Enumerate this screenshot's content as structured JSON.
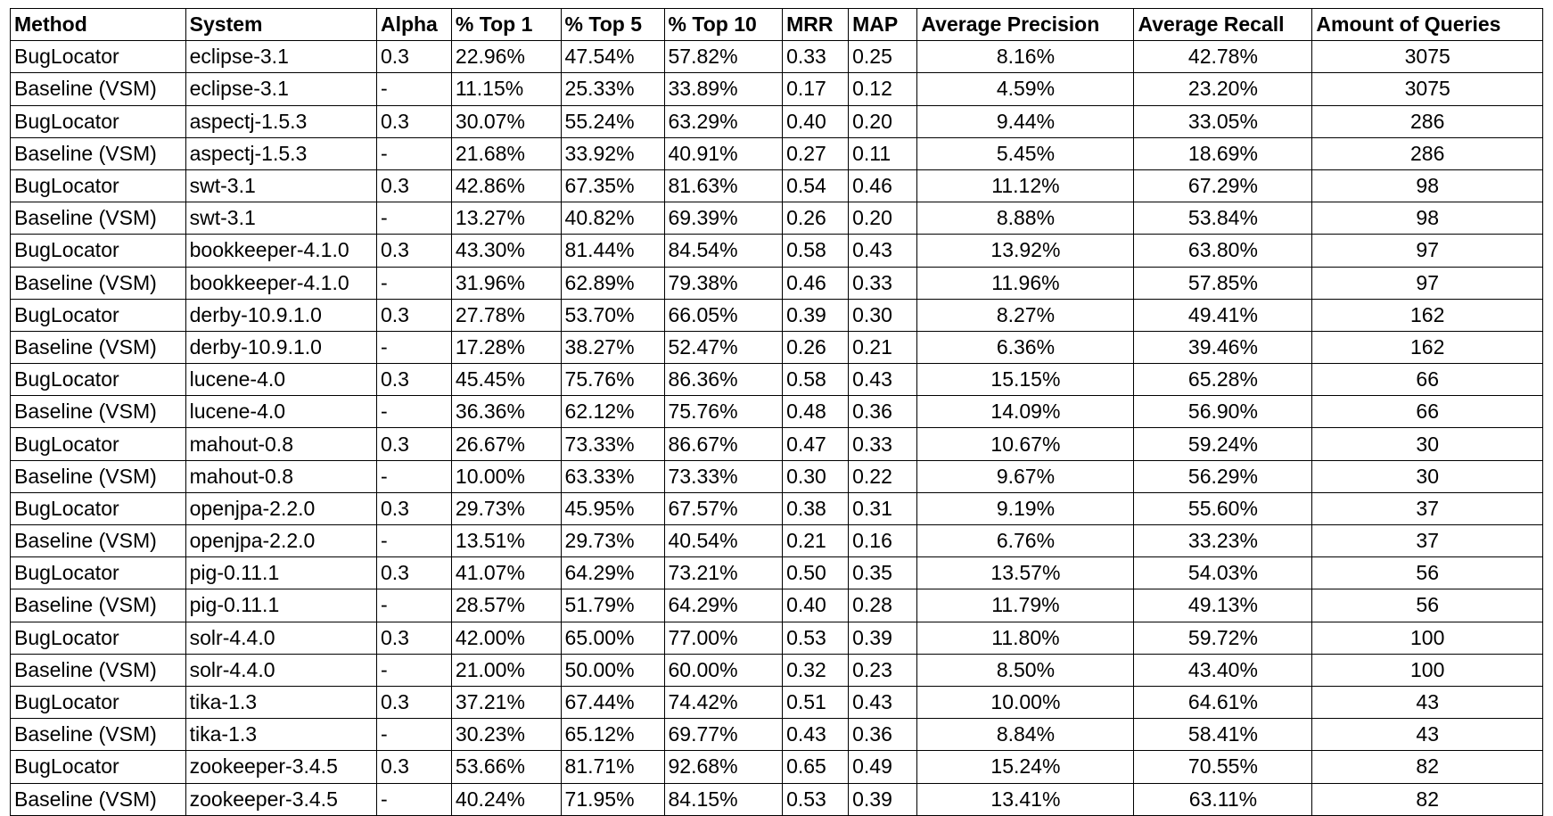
{
  "table": {
    "columns": [
      "Method",
      "System",
      "Alpha",
      "% Top 1",
      "% Top 5",
      "% Top 10",
      "MRR",
      "MAP",
      "Average Precision",
      "Average Recall",
      "Amount of Queries"
    ],
    "rows": [
      [
        "BugLocator",
        "eclipse-3.1",
        "0.3",
        "22.96%",
        "47.54%",
        "57.82%",
        "0.33",
        "0.25",
        "8.16%",
        "42.78%",
        "3075"
      ],
      [
        "Baseline (VSM)",
        "eclipse-3.1",
        "-",
        "11.15%",
        "25.33%",
        "33.89%",
        "0.17",
        "0.12",
        "4.59%",
        "23.20%",
        "3075"
      ],
      [
        "BugLocator",
        "aspectj-1.5.3",
        "0.3",
        "30.07%",
        "55.24%",
        "63.29%",
        "0.40",
        "0.20",
        "9.44%",
        "33.05%",
        "286"
      ],
      [
        "Baseline (VSM)",
        "aspectj-1.5.3",
        "-",
        "21.68%",
        "33.92%",
        "40.91%",
        "0.27",
        "0.11",
        "5.45%",
        "18.69%",
        "286"
      ],
      [
        "BugLocator",
        "swt-3.1",
        "0.3",
        "42.86%",
        "67.35%",
        "81.63%",
        "0.54",
        "0.46",
        "11.12%",
        "67.29%",
        "98"
      ],
      [
        "Baseline (VSM)",
        "swt-3.1",
        "-",
        "13.27%",
        "40.82%",
        "69.39%",
        "0.26",
        "0.20",
        "8.88%",
        "53.84%",
        "98"
      ],
      [
        "BugLocator",
        "bookkeeper-4.1.0",
        "0.3",
        "43.30%",
        "81.44%",
        "84.54%",
        "0.58",
        "0.43",
        "13.92%",
        "63.80%",
        "97"
      ],
      [
        "Baseline (VSM)",
        "bookkeeper-4.1.0",
        "-",
        "31.96%",
        "62.89%",
        "79.38%",
        "0.46",
        "0.33",
        "11.96%",
        "57.85%",
        "97"
      ],
      [
        "BugLocator",
        "derby-10.9.1.0",
        "0.3",
        "27.78%",
        "53.70%",
        "66.05%",
        "0.39",
        "0.30",
        "8.27%",
        "49.41%",
        "162"
      ],
      [
        "Baseline (VSM)",
        "derby-10.9.1.0",
        "-",
        "17.28%",
        "38.27%",
        "52.47%",
        "0.26",
        "0.21",
        "6.36%",
        "39.46%",
        "162"
      ],
      [
        "BugLocator",
        "lucene-4.0",
        "0.3",
        "45.45%",
        "75.76%",
        "86.36%",
        "0.58",
        "0.43",
        "15.15%",
        "65.28%",
        "66"
      ],
      [
        "Baseline (VSM)",
        "lucene-4.0",
        "-",
        "36.36%",
        "62.12%",
        "75.76%",
        "0.48",
        "0.36",
        "14.09%",
        "56.90%",
        "66"
      ],
      [
        "BugLocator",
        "mahout-0.8",
        "0.3",
        "26.67%",
        "73.33%",
        "86.67%",
        "0.47",
        "0.33",
        "10.67%",
        "59.24%",
        "30"
      ],
      [
        "Baseline (VSM)",
        "mahout-0.8",
        "-",
        "10.00%",
        "63.33%",
        "73.33%",
        "0.30",
        "0.22",
        "9.67%",
        "56.29%",
        "30"
      ],
      [
        "BugLocator",
        "openjpa-2.2.0",
        "0.3",
        "29.73%",
        "45.95%",
        "67.57%",
        "0.38",
        "0.31",
        "9.19%",
        "55.60%",
        "37"
      ],
      [
        "Baseline (VSM)",
        "openjpa-2.2.0",
        "-",
        "13.51%",
        "29.73%",
        "40.54%",
        "0.21",
        "0.16",
        "6.76%",
        "33.23%",
        "37"
      ],
      [
        "BugLocator",
        "pig-0.11.1",
        "0.3",
        "41.07%",
        "64.29%",
        "73.21%",
        "0.50",
        "0.35",
        "13.57%",
        "54.03%",
        "56"
      ],
      [
        "Baseline (VSM)",
        "pig-0.11.1",
        "-",
        "28.57%",
        "51.79%",
        "64.29%",
        "0.40",
        "0.28",
        "11.79%",
        "49.13%",
        "56"
      ],
      [
        "BugLocator",
        "solr-4.4.0",
        "0.3",
        "42.00%",
        "65.00%",
        "77.00%",
        "0.53",
        "0.39",
        "11.80%",
        "59.72%",
        "100"
      ],
      [
        "Baseline (VSM)",
        "solr-4.4.0",
        "-",
        "21.00%",
        "50.00%",
        "60.00%",
        "0.32",
        "0.23",
        "8.50%",
        "43.40%",
        "100"
      ],
      [
        "BugLocator",
        "tika-1.3",
        "0.3",
        "37.21%",
        "67.44%",
        "74.42%",
        "0.51",
        "0.43",
        "10.00%",
        "64.61%",
        "43"
      ],
      [
        "Baseline (VSM)",
        "tika-1.3",
        "-",
        "30.23%",
        "65.12%",
        "69.77%",
        "0.43",
        "0.36",
        "8.84%",
        "58.41%",
        "43"
      ],
      [
        "BugLocator",
        "zookeeper-3.4.5",
        "0.3",
        "53.66%",
        "81.71%",
        "92.68%",
        "0.65",
        "0.49",
        "15.24%",
        "70.55%",
        "82"
      ],
      [
        "Baseline (VSM)",
        "zookeeper-3.4.5",
        "-",
        "40.24%",
        "71.95%",
        "84.15%",
        "0.53",
        "0.39",
        "13.41%",
        "63.11%",
        "82"
      ]
    ]
  }
}
